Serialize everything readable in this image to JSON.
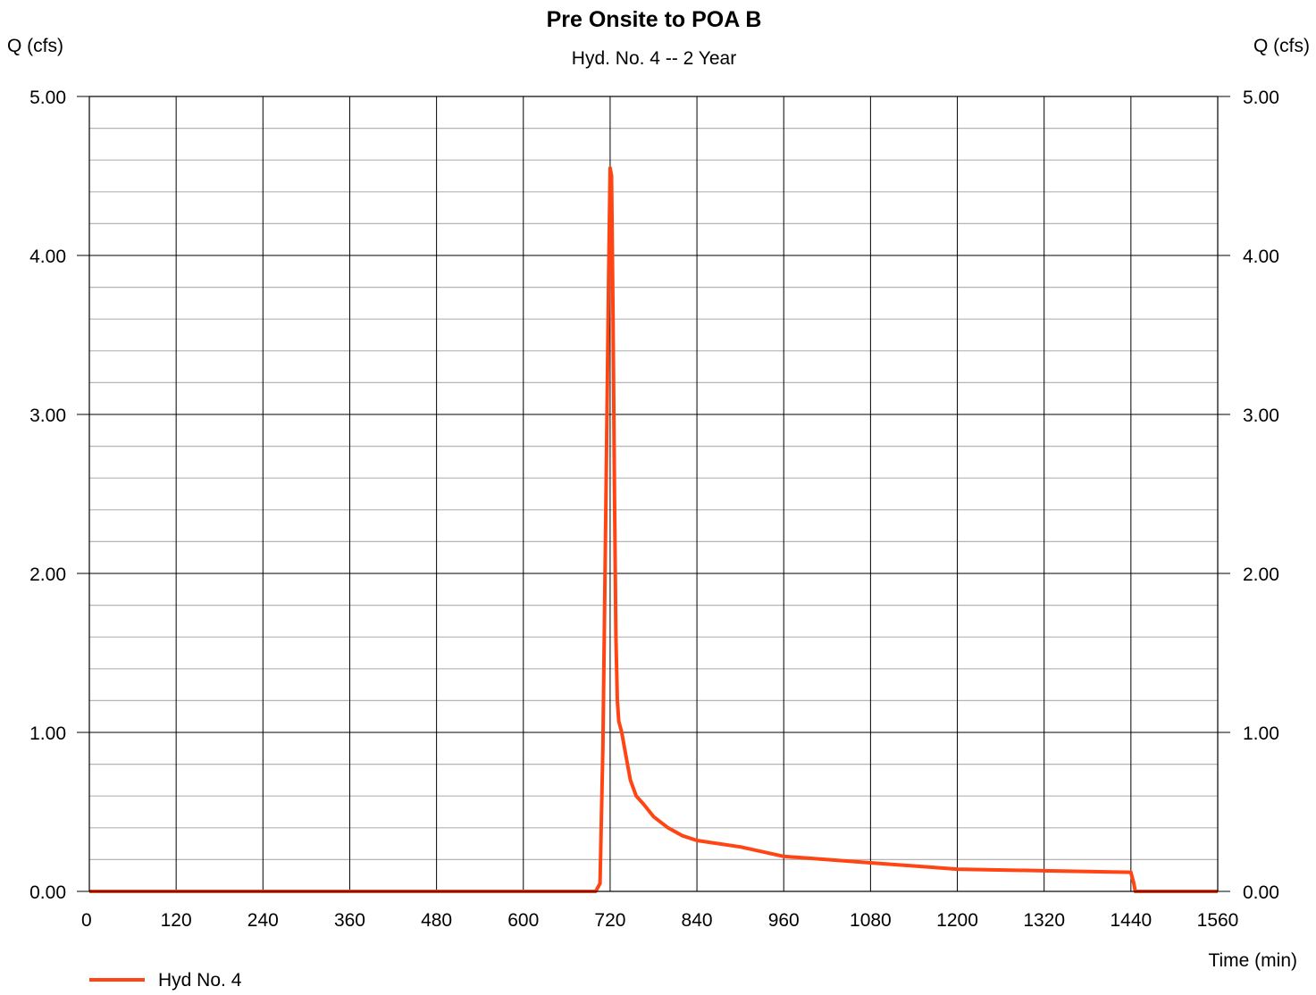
{
  "chart_data": {
    "type": "line",
    "title": "Pre Onsite to POA B",
    "subtitle": "Hyd. No. 4 -- 2 Year",
    "ylabel_left": "Q (cfs)",
    "ylabel_right": "Q (cfs)",
    "xlabel": "Time (min)",
    "xlim": [
      0,
      1560
    ],
    "ylim": [
      0,
      5
    ],
    "x_ticks": [
      0,
      120,
      240,
      360,
      480,
      600,
      720,
      840,
      960,
      1080,
      1200,
      1320,
      1440,
      1560
    ],
    "x_tick_labels": [
      "0",
      "120",
      "240",
      "360",
      "480",
      "600",
      "720",
      "840",
      "960",
      "1080",
      "1200",
      "1320",
      "1440",
      "1560"
    ],
    "y_ticks": [
      0,
      1,
      2,
      3,
      4,
      5
    ],
    "y_tick_labels": [
      "0.00",
      "1.00",
      "2.00",
      "3.00",
      "4.00",
      "5.00"
    ],
    "y_minor_step": 0.2,
    "grid": true,
    "legend_position": "bottom-left",
    "series": [
      {
        "name": "Hyd No. 4",
        "color": "#ff4513",
        "x": [
          0,
          700,
          706,
          710,
          714,
          718,
          720,
          722,
          724,
          726,
          728,
          730,
          732,
          736,
          742,
          748,
          756,
          766,
          780,
          800,
          820,
          840,
          900,
          960,
          1080,
          1200,
          1320,
          1440,
          1444,
          1446,
          1560
        ],
        "y": [
          0,
          0,
          0.05,
          0.9,
          2.4,
          3.9,
          4.55,
          4.5,
          3.6,
          2.5,
          1.6,
          1.2,
          1.07,
          1.0,
          0.85,
          0.7,
          0.6,
          0.55,
          0.47,
          0.4,
          0.35,
          0.32,
          0.28,
          0.22,
          0.18,
          0.14,
          0.13,
          0.12,
          0.05,
          0,
          0
        ]
      }
    ]
  }
}
